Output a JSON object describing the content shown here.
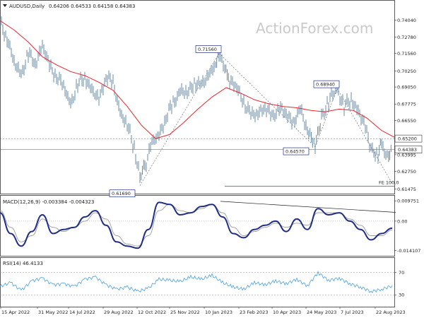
{
  "watermark": "ActionForex.com",
  "chart_data": {
    "type": "line",
    "symbol": "AUDUSD,Daily",
    "ohlc_header": "0.64206 0.64533 0.64158 0.64383",
    "x_tick_labels": [
      "15 Apr 2022",
      "31 May 2022",
      "14 Jul 2022",
      "29 Aug 2022",
      "12 Oct 2022",
      "25 Nov 2022",
      "10 Jan 2023",
      "23 Feb 2023",
      "10 Apr 2023",
      "24 May 2023",
      "7 Jul 2023",
      "22 Aug 2023"
    ],
    "price": {
      "y_ticks": [
        0.7404,
        0.7278,
        0.7156,
        0.7025,
        0.6905,
        0.6778,
        0.6655,
        0.652,
        0.64,
        0.6275,
        0.6145
      ],
      "y_tick_labels": [
        "0.74040",
        "0.72780",
        "0.71560",
        "0.70250",
        "0.69050",
        "0.67775",
        "0.66550",
        "0.65200",
        "0.63995",
        "0.62750",
        "0.61475"
      ],
      "ylim": [
        0.612,
        0.748
      ],
      "current_price": "0.64383",
      "horizontal_levels": [
        {
          "value": 0.652,
          "label": "0.65200",
          "style": "dotted"
        },
        {
          "value": 0.64383,
          "label": "0.64383",
          "style": "solid"
        }
      ],
      "fe_label": "FE 100.0",
      "fe_value": 0.6186,
      "annotations": [
        {
          "label": "0.71560",
          "x": 310,
          "value": 0.7156
        },
        {
          "label": "0.61690",
          "x": 198,
          "value": 0.6169
        },
        {
          "label": "0.64570",
          "x": 446,
          "value": 0.6457
        },
        {
          "label": "0.68940",
          "x": 477,
          "value": 0.6894
        }
      ],
      "series": [
        {
          "name": "Close",
          "color": "#5a7f99",
          "x": [
            0,
            10,
            20,
            30,
            40,
            50,
            60,
            70,
            80,
            90,
            100,
            110,
            120,
            130,
            140,
            150,
            160,
            170,
            180,
            190,
            198,
            205,
            215,
            225,
            235,
            245,
            255,
            265,
            275,
            285,
            295,
            305,
            310,
            318,
            325,
            335,
            345,
            355,
            365,
            375,
            385,
            395,
            405,
            415,
            425,
            435,
            446,
            455,
            465,
            477,
            487,
            497,
            507,
            517,
            525,
            535,
            540,
            548,
            555
          ],
          "y": [
            0.738,
            0.728,
            0.708,
            0.7,
            0.715,
            0.708,
            0.722,
            0.705,
            0.7,
            0.69,
            0.678,
            0.692,
            0.698,
            0.688,
            0.68,
            0.7,
            0.692,
            0.672,
            0.662,
            0.645,
            0.625,
            0.632,
            0.648,
            0.655,
            0.668,
            0.678,
            0.688,
            0.685,
            0.695,
            0.69,
            0.7,
            0.708,
            0.7156,
            0.705,
            0.695,
            0.69,
            0.68,
            0.668,
            0.672,
            0.675,
            0.668,
            0.675,
            0.67,
            0.665,
            0.672,
            0.66,
            0.6457,
            0.668,
            0.68,
            0.6894,
            0.675,
            0.682,
            0.672,
            0.66,
            0.645,
            0.64,
            0.648,
            0.639,
            0.6438
          ]
        },
        {
          "name": "MA",
          "color": "#e8262d",
          "x": [
            0,
            20,
            40,
            60,
            80,
            100,
            120,
            140,
            160,
            180,
            200,
            220,
            240,
            260,
            280,
            300,
            320,
            340,
            360,
            380,
            400,
            420,
            440,
            460,
            480,
            500,
            520,
            540,
            558
          ],
          "y": [
            0.74,
            0.733,
            0.724,
            0.713,
            0.707,
            0.702,
            0.699,
            0.694,
            0.688,
            0.676,
            0.662,
            0.652,
            0.655,
            0.664,
            0.674,
            0.683,
            0.69,
            0.686,
            0.681,
            0.678,
            0.676,
            0.675,
            0.673,
            0.672,
            0.674,
            0.673,
            0.667,
            0.658,
            0.653
          ]
        }
      ]
    },
    "macd": {
      "title": "MACD(12,26,9) -0.003384 -0.004323",
      "y_tick_labels": [
        "0.009751",
        "0.00",
        "-0.014107"
      ],
      "y_ticks": [
        0.009751,
        0.0,
        -0.014107
      ],
      "ylim": [
        -0.016,
        0.0115
      ],
      "series": [
        {
          "name": "MACD",
          "color": "#1f2d86",
          "x": [
            0,
            15,
            30,
            45,
            60,
            75,
            90,
            105,
            120,
            135,
            150,
            165,
            180,
            195,
            210,
            225,
            240,
            255,
            270,
            285,
            300,
            315,
            330,
            345,
            360,
            375,
            390,
            405,
            420,
            435,
            450,
            465,
            480,
            495,
            510,
            525,
            540,
            555
          ],
          "y": [
            0.004,
            -0.006,
            -0.012,
            -0.005,
            0.003,
            -0.006,
            -0.004,
            -0.003,
            0.002,
            0.005,
            -0.002,
            -0.01,
            -0.012,
            -0.013,
            -0.004,
            0.009,
            0.008,
            0.003,
            0.004,
            0.007,
            0.008,
            0.002,
            -0.006,
            -0.008,
            -0.004,
            -0.002,
            0.0,
            -0.005,
            0.001,
            -0.004,
            0.006,
            0.003,
            0.004,
            0.0,
            -0.004,
            -0.009,
            -0.006,
            -0.0034
          ]
        },
        {
          "name": "Signal",
          "color": "#9a9a9a",
          "x": [
            0,
            15,
            30,
            45,
            60,
            75,
            90,
            105,
            120,
            135,
            150,
            165,
            180,
            195,
            210,
            225,
            240,
            255,
            270,
            285,
            300,
            315,
            330,
            345,
            360,
            375,
            390,
            405,
            420,
            435,
            450,
            465,
            480,
            495,
            510,
            525,
            540,
            555
          ],
          "y": [
            0.005,
            -0.003,
            -0.01,
            -0.007,
            0.001,
            -0.003,
            -0.005,
            -0.003,
            0.0,
            0.004,
            0.001,
            -0.007,
            -0.011,
            -0.012,
            -0.007,
            0.005,
            0.008,
            0.005,
            0.004,
            0.006,
            0.008,
            0.004,
            -0.003,
            -0.007,
            -0.005,
            -0.003,
            -0.001,
            -0.003,
            -0.001,
            -0.002,
            0.004,
            0.004,
            0.004,
            0.001,
            -0.002,
            -0.007,
            -0.007,
            -0.0043
          ]
        }
      ],
      "divergence_line": {
        "x": [
          312,
          560
        ],
        "y": [
          0.0095,
          0.0042
        ]
      }
    },
    "rsi": {
      "title": "RSI(14) 46.4133",
      "y_ticks": [
        70,
        30
      ],
      "y_tick_labels": [
        "70",
        "30"
      ],
      "ylim": [
        10,
        95
      ],
      "series": [
        {
          "name": "RSI",
          "color": "#4aa0e0",
          "x": [
            0,
            15,
            30,
            45,
            60,
            75,
            90,
            105,
            120,
            135,
            150,
            165,
            180,
            195,
            210,
            225,
            240,
            255,
            270,
            285,
            300,
            315,
            330,
            345,
            360,
            375,
            390,
            405,
            420,
            435,
            450,
            465,
            480,
            495,
            510,
            525,
            540,
            555
          ],
          "y": [
            45,
            52,
            38,
            55,
            60,
            48,
            50,
            45,
            58,
            62,
            48,
            40,
            44,
            36,
            42,
            58,
            56,
            54,
            62,
            58,
            65,
            52,
            44,
            40,
            52,
            48,
            55,
            50,
            58,
            46,
            70,
            56,
            60,
            50,
            44,
            36,
            40,
            46.4
          ]
        }
      ]
    }
  }
}
